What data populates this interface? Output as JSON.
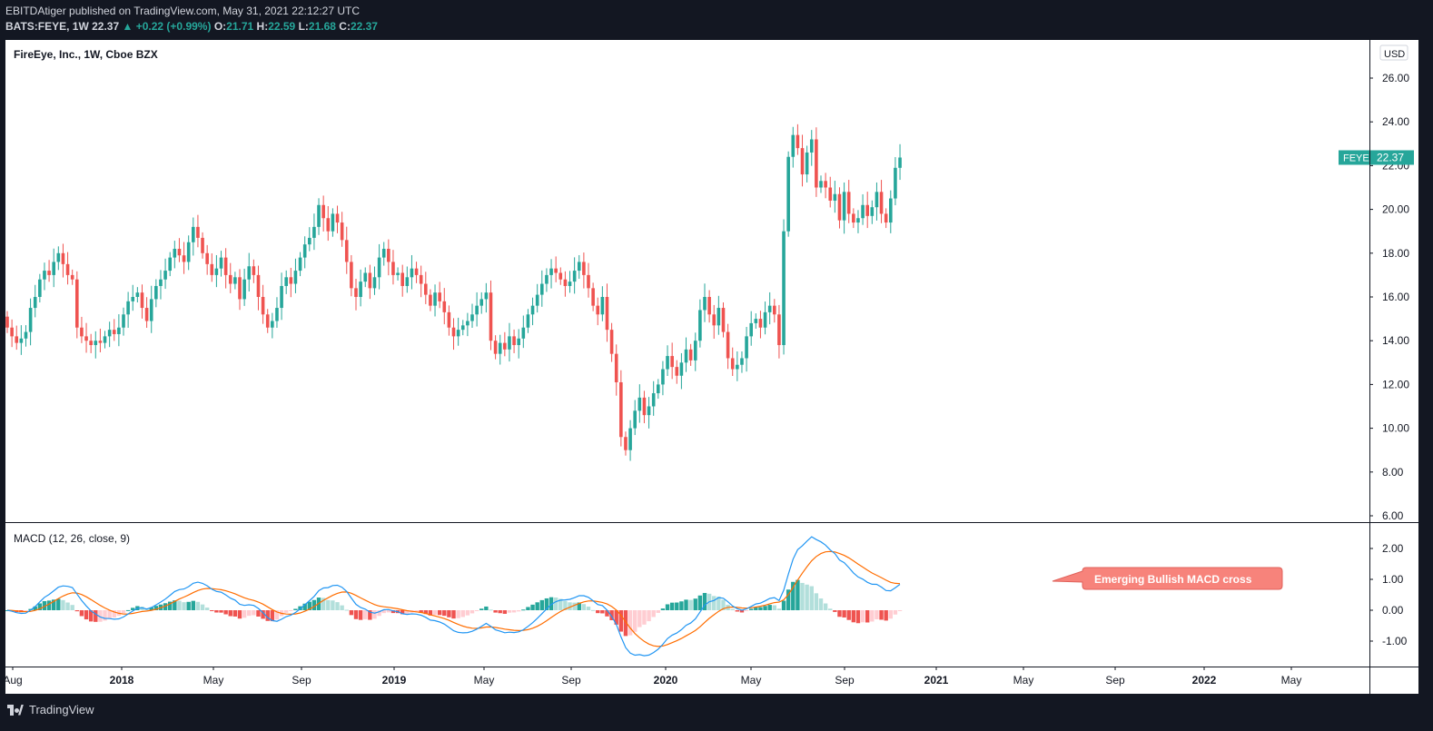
{
  "header": {
    "published": "EBITDAtiger published on TradingView.com, May 31, 2021 22:12:27 UTC",
    "symbol": "BATS:FEYE, 1W",
    "last": "22.37",
    "change_arrow": "▲",
    "change": "+0.22 (+0.99%)",
    "o_label": "O:",
    "o_value": "21.71",
    "h_label": "H:",
    "h_value": "22.59",
    "l_label": "L:",
    "l_value": "21.68",
    "c_label": "C:",
    "c_value": "22.37"
  },
  "footer": {
    "brand": "TradingView"
  },
  "chart_data": [
    {
      "type": "candlestick",
      "title": "FireEye, Inc., 1W, Cboe BZX",
      "currency": "USD",
      "last_price_label": {
        "symbol": "FEYE",
        "value": "22.37"
      },
      "ylim": [
        6,
        27
      ],
      "yticks": [
        "6.00",
        "8.00",
        "10.00",
        "12.00",
        "14.00",
        "16.00",
        "18.00",
        "20.00",
        "22.00",
        "24.00",
        "26.00"
      ],
      "x_ticks": [
        "Aug",
        "2018",
        "May",
        "Sep",
        "2019",
        "May",
        "Sep",
        "2020",
        "May",
        "Sep",
        "2021",
        "May",
        "Sep",
        "2022",
        "May"
      ],
      "up_color": "#26a69a",
      "down_color": "#ef5350",
      "closes": [
        14.6,
        14.2,
        13.9,
        14.1,
        14.4,
        15.5,
        16.0,
        16.8,
        17.2,
        17.0,
        17.6,
        18.0,
        17.5,
        17.0,
        16.8,
        14.6,
        14.2,
        14.0,
        13.8,
        14.0,
        13.9,
        14.2,
        14.5,
        14.3,
        14.6,
        15.2,
        15.8,
        16.0,
        16.2,
        15.5,
        14.9,
        15.9,
        16.5,
        16.8,
        17.2,
        17.8,
        18.2,
        17.9,
        17.6,
        18.5,
        19.2,
        18.7,
        18.0,
        17.5,
        17.0,
        17.3,
        17.8,
        17.0,
        16.6,
        16.9,
        15.9,
        16.8,
        17.4,
        17.0,
        16.0,
        15.2,
        14.6,
        14.9,
        15.5,
        16.5,
        16.9,
        16.6,
        17.2,
        17.8,
        18.4,
        18.7,
        19.2,
        20.2,
        19.6,
        19.0,
        19.8,
        19.4,
        18.6,
        17.6,
        16.4,
        16.0,
        16.7,
        17.1,
        16.4,
        16.9,
        17.8,
        18.2,
        17.6,
        17.0,
        17.1,
        16.5,
        16.9,
        17.3,
        17.0,
        16.6,
        16.1,
        15.6,
        16.2,
        15.8,
        15.3,
        14.6,
        14.2,
        14.5,
        14.7,
        14.9,
        15.2,
        15.6,
        15.9,
        16.2,
        14.0,
        13.4,
        13.9,
        13.6,
        14.2,
        13.8,
        14.1,
        14.6,
        15.2,
        15.6,
        16.1,
        16.6,
        17.0,
        17.3,
        17.1,
        16.8,
        16.5,
        16.7,
        17.2,
        17.6,
        17.0,
        16.4,
        15.6,
        15.2,
        16.0,
        14.5,
        13.4,
        12.1,
        9.6,
        9.0,
        10.0,
        10.8,
        11.4,
        10.6,
        11.0,
        11.6,
        12.0,
        12.7,
        13.3,
        12.8,
        12.4,
        13.0,
        13.6,
        13.1,
        14.0,
        15.4,
        16.0,
        15.2,
        14.7,
        15.5,
        14.4,
        13.2,
        12.7,
        12.9,
        13.2,
        14.2,
        14.8,
        15.0,
        14.6,
        15.3,
        15.6,
        15.2,
        13.8,
        19.0,
        22.4,
        23.4,
        22.8,
        21.6,
        22.6,
        23.2,
        21.0,
        21.3,
        21.0,
        20.4,
        20.7,
        19.5,
        20.8,
        19.8,
        19.4,
        19.6,
        20.2,
        19.7,
        20.1,
        20.8,
        19.8,
        19.4,
        20.5,
        21.9,
        22.37
      ],
      "highs_lows_note": "estimated from gridlines"
    },
    {
      "type": "macd",
      "title": "MACD (12, 26, close, 9)",
      "ylim": [
        -1.8,
        2.9
      ],
      "yticks": [
        "-1.00",
        "0.00",
        "1.00",
        "2.00"
      ],
      "macd_color": "#2196f3",
      "signal_color": "#ff6d00",
      "hist_colors": {
        "up_strong": "#26a69a",
        "up_weak": "#b2dfdb",
        "down_strong": "#ef5350",
        "down_weak": "#ffcdd2"
      },
      "annotation": "Emerging Bullish MACD cross",
      "annotation_color": "#f7837b"
    }
  ]
}
